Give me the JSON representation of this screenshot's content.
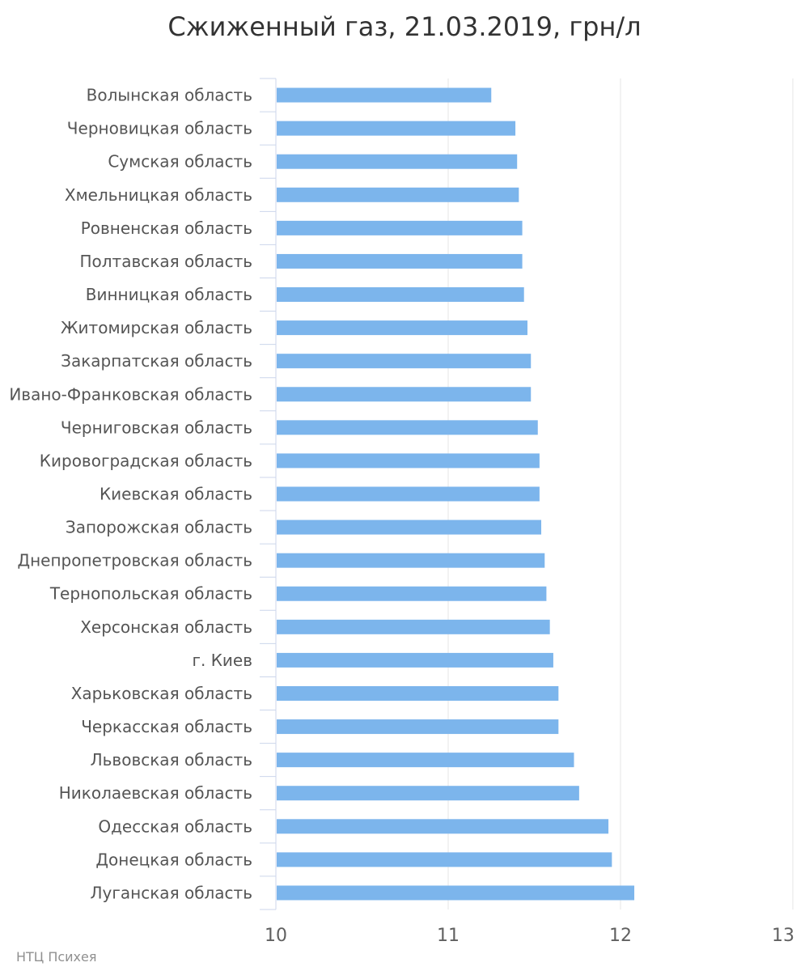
{
  "chart_data": {
    "type": "bar",
    "orientation": "horizontal",
    "title": "Сжиженный газ, 21.03.2019, грн/л",
    "xlabel": "",
    "ylabel": "",
    "xlim": [
      10,
      13
    ],
    "x_ticks": [
      "10",
      "11",
      "12",
      "13"
    ],
    "grid": true,
    "bar_color": "#7cb5ec",
    "categories": [
      "Волынская область",
      "Черновицкая область",
      "Сумская область",
      "Хмельницкая область",
      "Ровненская область",
      "Полтавская область",
      "Винницкая область",
      "Житомирская область",
      "Закарпатская область",
      "Ивано-Франковская область",
      "Черниговская область",
      "Кировоградская область",
      "Киевская область",
      "Запорожская область",
      "Днепропетровская область",
      "Тернопольская область",
      "Херсонская область",
      "г. Киев",
      "Харьковская область",
      "Черкасская область",
      "Львовская область",
      "Николаевская область",
      "Одесская область",
      "Донецкая область",
      "Луганская область"
    ],
    "values": [
      11.25,
      11.39,
      11.4,
      11.41,
      11.43,
      11.43,
      11.44,
      11.46,
      11.48,
      11.48,
      11.52,
      11.53,
      11.53,
      11.54,
      11.56,
      11.57,
      11.59,
      11.61,
      11.64,
      11.64,
      11.73,
      11.76,
      11.93,
      11.95,
      12.08
    ]
  },
  "credit": "НТЦ Психея"
}
